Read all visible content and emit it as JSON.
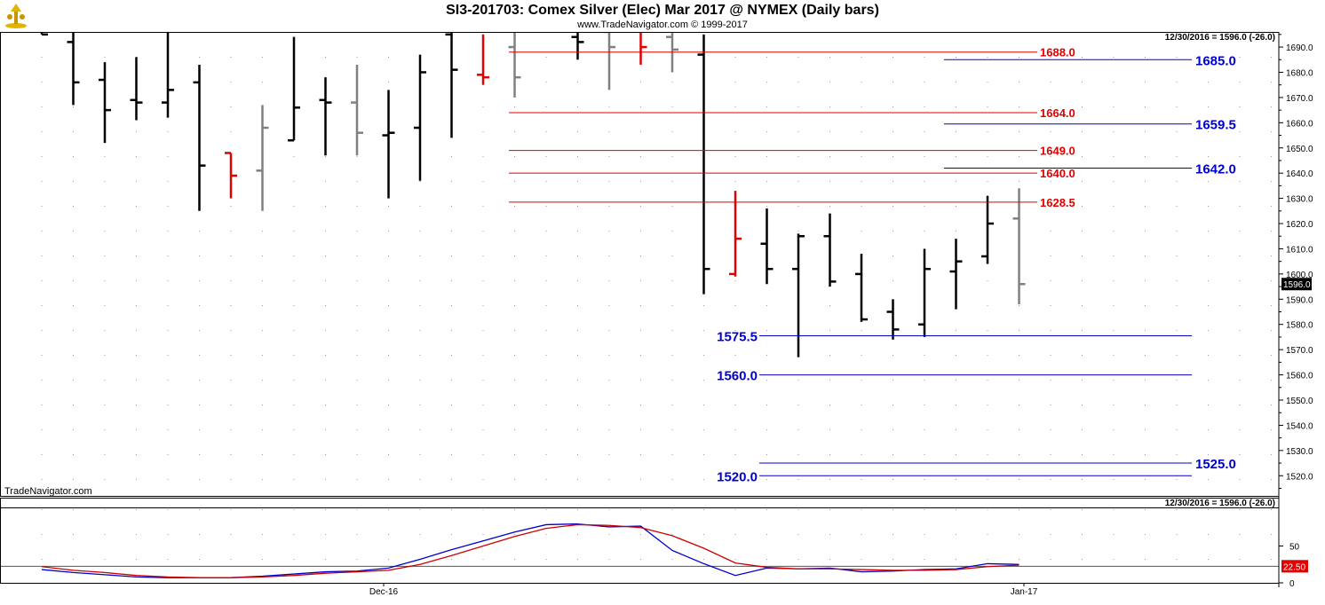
{
  "header": {
    "title": "SI3-201703:  Comex Silver (Elec) Mar 2017 @ NYMEX  (Daily bars)",
    "subtitle": "www.TradeNavigator.com © 1999-2017"
  },
  "watermark": "TradeNavigator.com",
  "colors": {
    "up_bar": "#000000",
    "neutral_bar": "#808080",
    "down_bar": "#e00000",
    "resistance_line": "#e00000",
    "support_line": "#0000cc",
    "osc_fast": "#0000cc",
    "osc_slow": "#cc0000",
    "last_price_badge": "#000000",
    "osc_badge": "#e00000"
  },
  "chart_data": [
    {
      "type": "ohlc",
      "name": "price",
      "info_label": "12/30/2016 = 1596.0 (-26.0)",
      "last_price_label": "1596.0",
      "ylim": [
        1512,
        1696
      ],
      "y_ticks": [
        1520.0,
        1530.0,
        1540.0,
        1550.0,
        1560.0,
        1570.0,
        1580.0,
        1590.0,
        1600.0,
        1610.0,
        1620.0,
        1630.0,
        1640.0,
        1650.0,
        1660.0,
        1670.0,
        1680.0,
        1690.0
      ],
      "x_labels": [
        "Dec-16",
        "Jan-17"
      ],
      "bars": [
        {
          "slot": 0,
          "o": 1697.5,
          "h": 1697.5,
          "l": 1695.0,
          "c": 1695.0,
          "color": "black"
        },
        {
          "slot": 1,
          "o": 1692.0,
          "h": 1698.0,
          "l": 1667.0,
          "c": 1676.0,
          "color": "black"
        },
        {
          "slot": 2,
          "o": 1677.0,
          "h": 1684.0,
          "l": 1652.0,
          "c": 1665.0,
          "color": "black"
        },
        {
          "slot": 3,
          "o": 1669.0,
          "h": 1686.0,
          "l": 1661.0,
          "c": 1668.0,
          "color": "black"
        },
        {
          "slot": 4,
          "o": 1668.0,
          "h": 1697.0,
          "l": 1662.0,
          "c": 1673.0,
          "color": "black"
        },
        {
          "slot": 5,
          "o": 1676.0,
          "h": 1683.0,
          "l": 1625.0,
          "c": 1643.0,
          "color": "black"
        },
        {
          "slot": 6,
          "o": 1648.0,
          "h": 1648.0,
          "l": 1630.0,
          "c": 1639.0,
          "color": "red"
        },
        {
          "slot": 7,
          "o": 1641.0,
          "h": 1667.0,
          "l": 1625.0,
          "c": 1658.0,
          "color": "gray"
        },
        {
          "slot": 8,
          "o": 1653.0,
          "h": 1694.0,
          "l": 1653.0,
          "c": 1666.0,
          "color": "black"
        },
        {
          "slot": 9,
          "o": 1669.0,
          "h": 1678.0,
          "l": 1647.0,
          "c": 1668.0,
          "color": "black"
        },
        {
          "slot": 10,
          "o": 1668.0,
          "h": 1683.0,
          "l": 1647.0,
          "c": 1656.0,
          "color": "gray"
        },
        {
          "slot": 11,
          "o": 1655.0,
          "h": 1673.0,
          "l": 1630.0,
          "c": 1656.0,
          "color": "black"
        },
        {
          "slot": 12,
          "o": 1658.0,
          "h": 1687.0,
          "l": 1637.0,
          "c": 1680.0,
          "color": "black"
        },
        {
          "slot": 13,
          "o": 1695.0,
          "h": 1697.0,
          "l": 1654.0,
          "c": 1681.0,
          "color": "black"
        },
        {
          "slot": 14,
          "o": 1679.0,
          "h": 1695.0,
          "l": 1675.0,
          "c": 1678.0,
          "color": "red"
        },
        {
          "slot": 15,
          "o": 1690.0,
          "h": 1697.0,
          "l": 1670.0,
          "c": 1678.0,
          "color": "gray"
        },
        {
          "slot": 17,
          "o": 1694.0,
          "h": 1697.0,
          "l": 1685.0,
          "c": 1692.0,
          "color": "black"
        },
        {
          "slot": 18,
          "o": 1696.0,
          "h": 1697.0,
          "l": 1673.0,
          "c": 1690.0,
          "color": "gray"
        },
        {
          "slot": 19,
          "o": 1697.0,
          "h": 1697.0,
          "l": 1683.0,
          "c": 1690.0,
          "color": "red"
        },
        {
          "slot": 20,
          "o": 1694.0,
          "h": 1697.0,
          "l": 1680.0,
          "c": 1689.0,
          "color": "gray"
        },
        {
          "slot": 21,
          "o": 1687.0,
          "h": 1695.0,
          "l": 1592.0,
          "c": 1602.0,
          "color": "black"
        },
        {
          "slot": 22,
          "o": 1600.0,
          "h": 1633.0,
          "l": 1599.0,
          "c": 1614.0,
          "color": "red"
        },
        {
          "slot": 23,
          "o": 1612.0,
          "h": 1626.0,
          "l": 1596.0,
          "c": 1602.0,
          "color": "black"
        },
        {
          "slot": 24,
          "o": 1602.0,
          "h": 1616.0,
          "l": 1567.0,
          "c": 1615.0,
          "color": "black"
        },
        {
          "slot": 25,
          "o": 1615.0,
          "h": 1624.0,
          "l": 1595.0,
          "c": 1597.0,
          "color": "black"
        },
        {
          "slot": 26,
          "o": 1600.0,
          "h": 1608.0,
          "l": 1581.0,
          "c": 1582.0,
          "color": "black"
        },
        {
          "slot": 27,
          "o": 1585.0,
          "h": 1590.0,
          "l": 1574.0,
          "c": 1578.0,
          "color": "black"
        },
        {
          "slot": 28,
          "o": 1580.0,
          "h": 1610.0,
          "l": 1575.0,
          "c": 1602.0,
          "color": "black"
        },
        {
          "slot": 29,
          "o": 1601.0,
          "h": 1614.0,
          "l": 1586.0,
          "c": 1605.0,
          "color": "black"
        },
        {
          "slot": 30,
          "o": 1607.0,
          "h": 1631.0,
          "l": 1604.0,
          "c": 1620.0,
          "color": "black"
        },
        {
          "slot": 31,
          "o": 1622.0,
          "h": 1634.0,
          "l": 1588.0,
          "c": 1596.0,
          "color": "gray"
        }
      ],
      "levels": [
        {
          "value": 1688.0,
          "label": "1688.0",
          "kind": "resistance"
        },
        {
          "value": 1664.0,
          "label": "1664.0",
          "kind": "resistance"
        },
        {
          "value": 1649.0,
          "label": "1649.0",
          "kind": "resistance"
        },
        {
          "value": 1640.0,
          "label": "1640.0",
          "kind": "resistance"
        },
        {
          "value": 1628.5,
          "label": "1628.5",
          "kind": "resistance"
        },
        {
          "value": 1685.0,
          "label": "1685.0",
          "kind": "support"
        },
        {
          "value": 1659.5,
          "label": "1659.5",
          "kind": "support"
        },
        {
          "value": 1642.0,
          "label": "1642.0",
          "kind": "support"
        },
        {
          "value": 1575.5,
          "label": "1575.5",
          "kind": "support"
        },
        {
          "value": 1560.0,
          "label": "1560.0",
          "kind": "support"
        },
        {
          "value": 1525.0,
          "label": "1525.0",
          "kind": "support"
        },
        {
          "value": 1520.0,
          "label": "1520.0",
          "kind": "support"
        }
      ]
    },
    {
      "type": "line",
      "name": "oscillator",
      "info_label": "12/30/2016 = 1596.0 (-26.0)",
      "last_value_label": "22.50",
      "ylim": [
        0,
        100
      ],
      "y_ticks": [
        0,
        50
      ],
      "reference_value": 22.5,
      "x": [
        0,
        1,
        2,
        3,
        4,
        5,
        6,
        7,
        8,
        9,
        10,
        11,
        12,
        13,
        14,
        15,
        16,
        17,
        18,
        19,
        20,
        21,
        22,
        23,
        24,
        25,
        26,
        27,
        28,
        29,
        30,
        31
      ],
      "series": [
        {
          "key": "fast",
          "values": [
            18,
            14,
            11,
            8,
            7,
            7,
            7,
            9,
            12,
            15,
            16,
            20,
            32,
            45,
            57,
            69,
            79,
            80,
            76,
            77,
            44,
            26,
            10,
            20,
            19,
            20,
            15,
            16,
            18,
            19,
            26,
            25
          ]
        },
        {
          "key": "slow",
          "values": [
            22,
            17,
            14,
            10,
            8,
            7,
            7,
            8,
            10,
            13,
            15,
            17,
            25,
            37,
            50,
            63,
            74,
            79,
            78,
            75,
            64,
            47,
            27,
            21,
            19,
            19,
            18,
            17,
            17,
            18,
            22,
            24
          ]
        }
      ]
    }
  ]
}
